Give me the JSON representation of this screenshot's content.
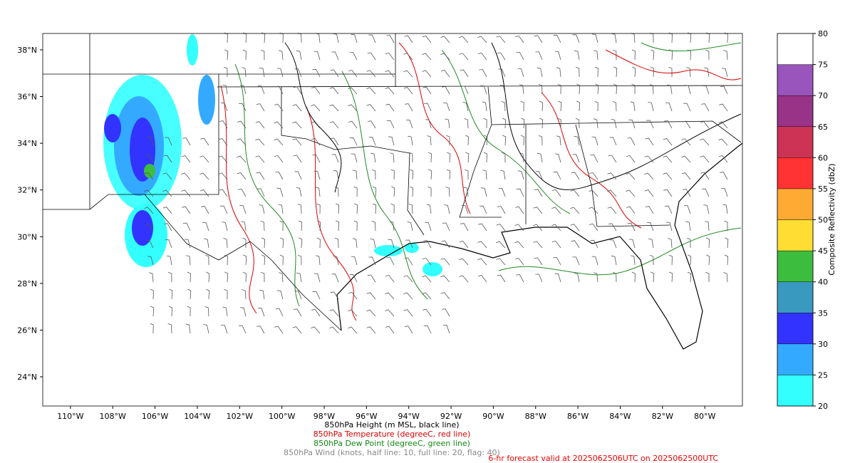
{
  "map": {
    "lonlim": [
      -111.31,
      -78.22
    ],
    "latlim": [
      22.75,
      38.7
    ],
    "lon_ticks": [
      {
        "value": -110,
        "label": "110°W"
      },
      {
        "value": -108,
        "label": "108°W"
      },
      {
        "value": -106,
        "label": "106°W"
      },
      {
        "value": -104,
        "label": "104°W"
      },
      {
        "value": -102,
        "label": "102°W"
      },
      {
        "value": -100,
        "label": "100°W"
      },
      {
        "value": -98,
        "label": "98°W"
      },
      {
        "value": -96,
        "label": "96°W"
      },
      {
        "value": -94,
        "label": "94°W"
      },
      {
        "value": -92,
        "label": "92°W"
      },
      {
        "value": -90,
        "label": "90°W"
      },
      {
        "value": -88,
        "label": "88°W"
      },
      {
        "value": -86,
        "label": "86°W"
      },
      {
        "value": -84,
        "label": "84°W"
      },
      {
        "value": -82,
        "label": "82°W"
      },
      {
        "value": -80,
        "label": "80°W"
      }
    ],
    "lat_ticks": [
      {
        "value": 24,
        "label": "24°N"
      },
      {
        "value": 26,
        "label": "26°N"
      },
      {
        "value": 28,
        "label": "28°N"
      },
      {
        "value": 30,
        "label": "30°N"
      },
      {
        "value": 32,
        "label": "32°N"
      },
      {
        "value": 34,
        "label": "34°N"
      },
      {
        "value": 36,
        "label": "36°N"
      },
      {
        "value": 38,
        "label": "38°N"
      }
    ]
  },
  "colorbar": {
    "label": "Composite Reflectivity (dbZ)",
    "ticks": [
      20,
      25,
      30,
      35,
      40,
      45,
      50,
      55,
      60,
      65,
      70,
      75,
      80
    ],
    "colors": [
      "#33ffff",
      "#33aaff",
      "#3333ff",
      "#3a99bf",
      "#3dbd3d",
      "#ffdd33",
      "#ffaa33",
      "#ff3333",
      "#cc3355",
      "#993388",
      "#9955bb",
      "#ffffff"
    ]
  },
  "captions": [
    "850hPa Height (m MSL, black line)",
    "850hPa Temperature (degreeC, red line)",
    "850hPa Dew Point (degreeC, green line)",
    "850hPa Wind (knots, half line: 10, full line: 20, flag: 40)"
  ],
  "valid": "6-hr forecast valid at 2025062506UTC on 2025062500UTC"
}
